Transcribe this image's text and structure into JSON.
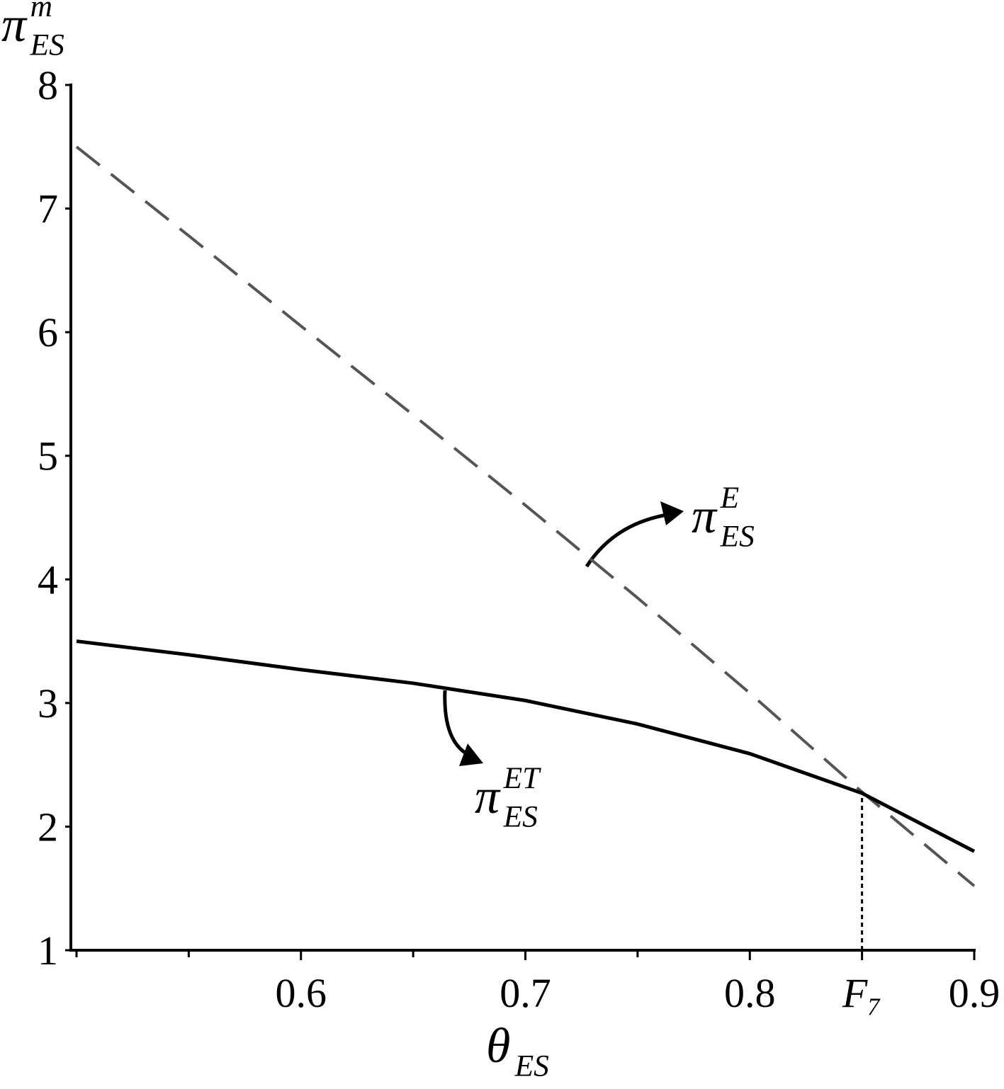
{
  "chart_data": {
    "type": "line",
    "x_label": {
      "base": "θ",
      "sub": "ES"
    },
    "y_label": {
      "base": "π",
      "sup": "m",
      "sub": "ES"
    },
    "x": [
      0.5,
      0.55,
      0.6,
      0.65,
      0.7,
      0.75,
      0.8,
      0.85,
      0.9
    ],
    "series": [
      {
        "color": "#555555",
        "dash": true,
        "values": [
          7.5,
          6.78,
          6.05,
          5.33,
          4.6,
          3.85,
          3.08,
          2.28,
          1.52
        ]
      },
      {
        "color": "#000000",
        "dash": false,
        "values": [
          3.5,
          3.39,
          3.27,
          3.16,
          3.02,
          2.83,
          2.59,
          2.27,
          1.8
        ]
      }
    ],
    "annotations": [
      {
        "base": "π",
        "sup": "E",
        "sub": "ES"
      },
      {
        "base": "π",
        "sup": "ET",
        "sub": "ES"
      }
    ],
    "xlim": [
      0.5,
      0.9
    ],
    "ylim": [
      1,
      8
    ],
    "xticks": [
      0.6,
      0.7,
      0.8,
      0.9,
      {
        "value": 0.85,
        "label": "F₇"
      }
    ],
    "xminor": [
      0.5,
      0.55,
      0.65,
      0.75
    ],
    "yticks": [
      1,
      2,
      3,
      4,
      5,
      6,
      7,
      8
    ]
  }
}
